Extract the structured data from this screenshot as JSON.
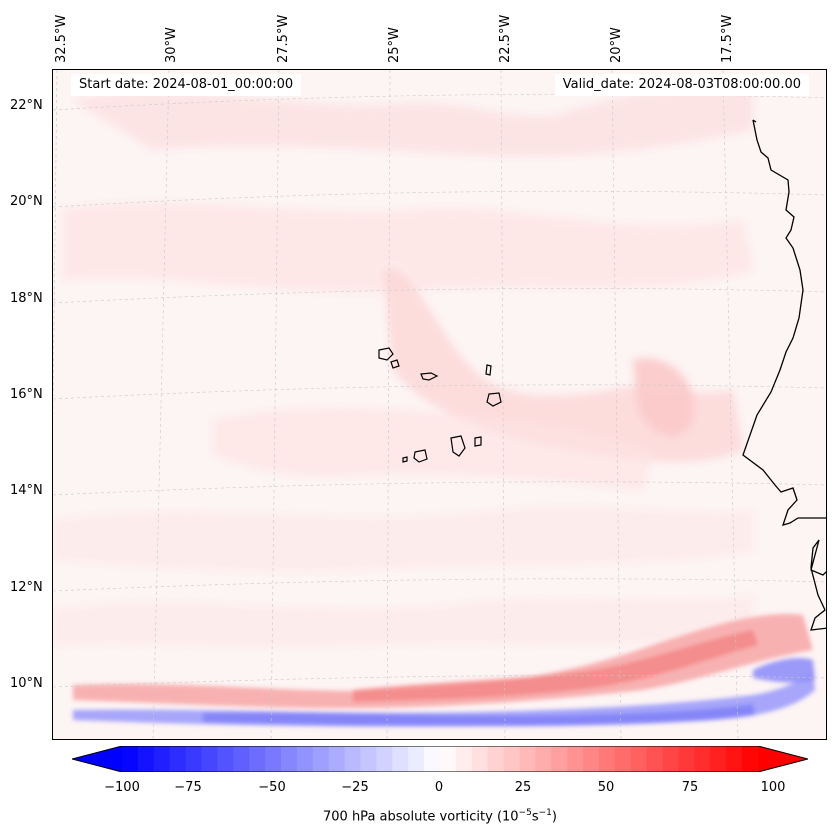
{
  "map": {
    "start_date": "Start date: 2024-08-01_00:00:00",
    "valid_date": "Valid_date: 2024-08-03T08:00:00.00",
    "longitude_labels": [
      "32.5°W",
      "30°W",
      "27.5°W",
      "25°W",
      "22.5°W",
      "20°W",
      "17.5°W"
    ],
    "latitude_labels": [
      "22°N",
      "20°N",
      "18°N",
      "16°N",
      "14°N",
      "12°N",
      "10°N"
    ],
    "variable": "700 hPa absolute vorticity"
  },
  "colorbar": {
    "ticks": [
      "−100",
      "−75",
      "−50",
      "−25",
      "0",
      "25",
      "50",
      "75",
      "100"
    ],
    "label_prefix": "700 hPa absolute vorticity (10",
    "label_exp1": "−5",
    "label_mid": "s",
    "label_exp2": "−1",
    "label_suffix": ")",
    "range": [
      -100,
      100
    ],
    "low_color": "#0000ff",
    "mid_color": "#ffffff",
    "high_color": "#ff0000"
  }
}
